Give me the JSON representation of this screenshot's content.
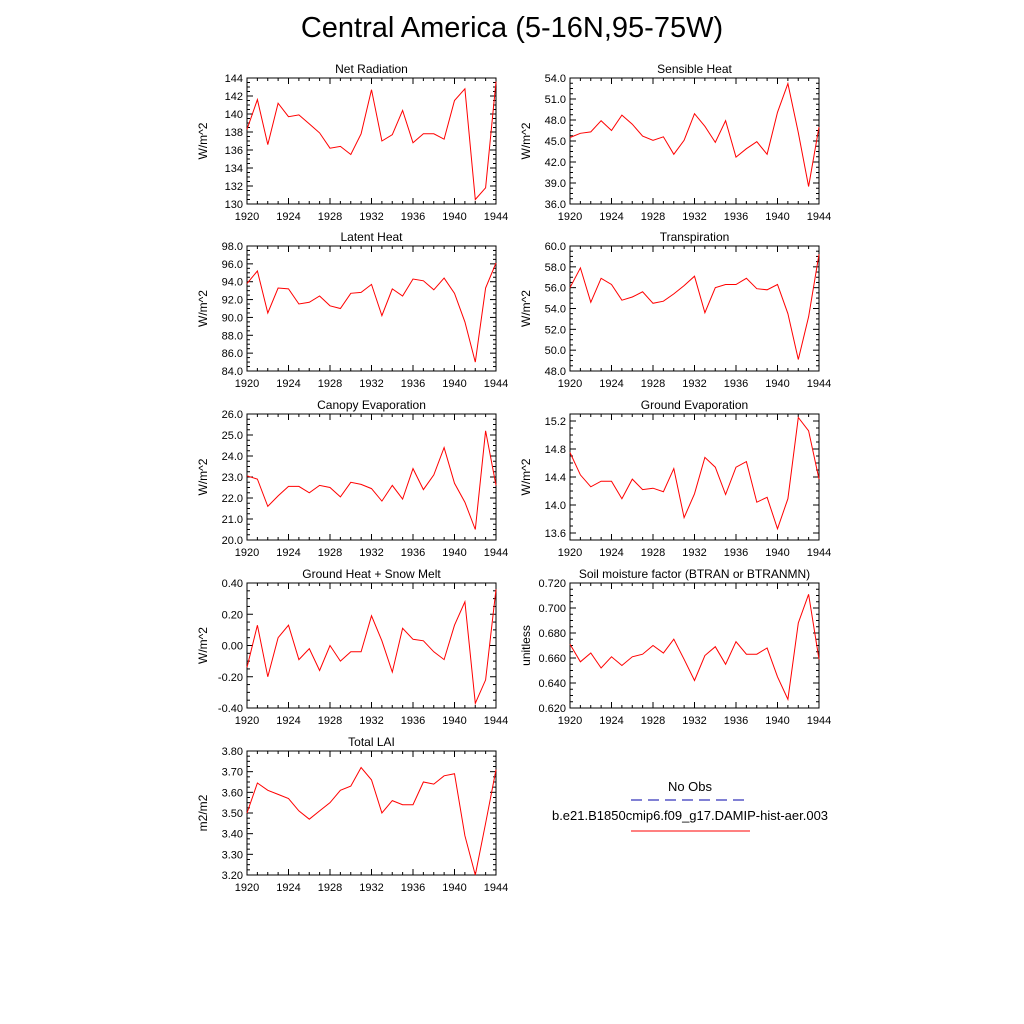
{
  "title": "Central America (5-16N,95-75W)",
  "colors": {
    "model_line": "#ff0000",
    "obs_line": "#0000aa",
    "axis": "#000000"
  },
  "legend": {
    "obs_label": "No Obs",
    "model_label": "b.e21.B1850cmip6.f09_g17.DAMIP-hist-aer.003"
  },
  "chart_data": [
    {
      "type": "line",
      "title": "Net Radiation",
      "xlabel": "",
      "ylabel": "W/m^2",
      "xlim": [
        1920,
        1944
      ],
      "ylim": [
        130,
        144
      ],
      "xticks": [
        1920,
        1924,
        1928,
        1932,
        1936,
        1940,
        1944
      ],
      "yticks": [
        130,
        132,
        134,
        136,
        138,
        140,
        142,
        144
      ],
      "ytick_labels": [
        "130",
        "132",
        "134",
        "136",
        "138",
        "140",
        "142",
        "144"
      ],
      "series": [
        {
          "values": [
            138.3,
            141.6,
            136.6,
            141.2,
            139.7,
            139.9,
            138.9,
            137.9,
            136.2,
            136.4,
            135.5,
            137.8,
            142.7,
            137.0,
            137.7,
            140.4,
            136.8,
            137.8,
            137.8,
            137.2,
            141.5,
            142.8,
            130.5,
            131.8,
            143.6
          ]
        }
      ]
    },
    {
      "type": "line",
      "title": "Sensible Heat",
      "xlabel": "",
      "ylabel": "W/m^2",
      "xlim": [
        1920,
        1944
      ],
      "ylim": [
        36,
        54
      ],
      "xticks": [
        1920,
        1924,
        1928,
        1932,
        1936,
        1940,
        1944
      ],
      "yticks": [
        36,
        39,
        42,
        45,
        48,
        51,
        54
      ],
      "ytick_labels": [
        "36.0",
        "39.0",
        "42.0",
        "45.0",
        "48.0",
        "51.0",
        "54.0"
      ],
      "series": [
        {
          "values": [
            45.5,
            46.1,
            46.3,
            47.9,
            46.5,
            48.7,
            47.4,
            45.7,
            45.1,
            45.6,
            43.1,
            45.1,
            48.9,
            47.1,
            44.8,
            47.9,
            42.7,
            43.9,
            44.9,
            43.1,
            49.1,
            53.2,
            46.2,
            38.5,
            47.0
          ]
        }
      ]
    },
    {
      "type": "line",
      "title": "Latent Heat",
      "xlabel": "",
      "ylabel": "W/m^2",
      "xlim": [
        1920,
        1944
      ],
      "ylim": [
        84,
        98
      ],
      "xticks": [
        1920,
        1924,
        1928,
        1932,
        1936,
        1940,
        1944
      ],
      "yticks": [
        84,
        86,
        88,
        90,
        92,
        94,
        96,
        98
      ],
      "ytick_labels": [
        "84.0",
        "86.0",
        "88.0",
        "90.0",
        "92.0",
        "94.0",
        "96.0",
        "98.0"
      ],
      "series": [
        {
          "values": [
            93.8,
            95.2,
            90.5,
            93.3,
            93.2,
            91.5,
            91.7,
            92.4,
            91.3,
            91.0,
            92.7,
            92.8,
            93.7,
            90.2,
            93.2,
            92.4,
            94.3,
            94.1,
            93.1,
            94.4,
            92.7,
            89.5,
            85.0,
            93.3,
            96.1
          ]
        }
      ]
    },
    {
      "type": "line",
      "title": "Transpiration",
      "xlabel": "",
      "ylabel": "W/m^2",
      "xlim": [
        1920,
        1944
      ],
      "ylim": [
        48,
        60
      ],
      "xticks": [
        1920,
        1924,
        1928,
        1932,
        1936,
        1940,
        1944
      ],
      "yticks": [
        48,
        50,
        52,
        54,
        56,
        58,
        60
      ],
      "ytick_labels": [
        "48.0",
        "50.0",
        "52.0",
        "54.0",
        "56.0",
        "58.0",
        "60.0"
      ],
      "series": [
        {
          "values": [
            56.0,
            57.9,
            54.6,
            56.9,
            56.3,
            54.8,
            55.1,
            55.6,
            54.5,
            54.7,
            55.4,
            56.2,
            57.1,
            53.6,
            56.0,
            56.3,
            56.3,
            56.9,
            55.9,
            55.8,
            56.3,
            53.5,
            49.1,
            53.2,
            59.2
          ]
        }
      ]
    },
    {
      "type": "line",
      "title": "Canopy Evaporation",
      "xlabel": "",
      "ylabel": "W/m^2",
      "xlim": [
        1920,
        1944
      ],
      "ylim": [
        20,
        26
      ],
      "xticks": [
        1920,
        1924,
        1928,
        1932,
        1936,
        1940,
        1944
      ],
      "yticks": [
        20,
        21,
        22,
        23,
        24,
        25,
        26
      ],
      "ytick_labels": [
        "20.0",
        "21.0",
        "22.0",
        "23.0",
        "24.0",
        "25.0",
        "26.0"
      ],
      "series": [
        {
          "values": [
            23.05,
            22.9,
            21.6,
            22.1,
            22.55,
            22.55,
            22.25,
            22.6,
            22.5,
            22.05,
            22.75,
            22.65,
            22.45,
            21.85,
            22.6,
            21.95,
            23.4,
            22.4,
            23.1,
            24.4,
            22.7,
            21.8,
            20.5,
            25.2,
            22.6
          ]
        }
      ]
    },
    {
      "type": "line",
      "title": "Ground Evaporation",
      "xlabel": "",
      "ylabel": "W/m^2",
      "xlim": [
        1920,
        1944
      ],
      "ylim": [
        13.5,
        15.3
      ],
      "xticks": [
        1920,
        1924,
        1928,
        1932,
        1936,
        1940,
        1944
      ],
      "yticks": [
        13.6,
        14.0,
        14.4,
        14.8,
        15.2
      ],
      "ytick_labels": [
        "13.6",
        "14.0",
        "14.4",
        "14.8",
        "15.2"
      ],
      "series": [
        {
          "values": [
            14.75,
            14.43,
            14.26,
            14.34,
            14.34,
            14.09,
            14.37,
            14.22,
            14.24,
            14.19,
            14.52,
            13.82,
            14.16,
            14.68,
            14.54,
            14.15,
            14.54,
            14.62,
            14.04,
            14.11,
            13.66,
            14.09,
            15.25,
            15.06,
            14.37
          ]
        }
      ]
    },
    {
      "type": "line",
      "title": "Ground Heat + Snow Melt",
      "xlabel": "",
      "ylabel": "W/m^2",
      "xlim": [
        1920,
        1944
      ],
      "ylim": [
        -0.4,
        0.4
      ],
      "xticks": [
        1920,
        1924,
        1928,
        1932,
        1936,
        1940,
        1944
      ],
      "yticks": [
        -0.4,
        -0.2,
        0.0,
        0.2,
        0.4
      ],
      "ytick_labels": [
        "-0.40",
        "-0.20",
        "0.00",
        "0.20",
        "0.40"
      ],
      "series": [
        {
          "values": [
            -0.14,
            0.13,
            -0.2,
            0.05,
            0.13,
            -0.09,
            -0.02,
            -0.16,
            0.0,
            -0.1,
            -0.04,
            -0.04,
            0.19,
            0.03,
            -0.17,
            0.11,
            0.04,
            0.03,
            -0.04,
            -0.09,
            0.13,
            0.28,
            -0.37,
            -0.22,
            0.36
          ]
        }
      ]
    },
    {
      "type": "line",
      "title": "Soil moisture factor (BTRAN or BTRANMN)",
      "xlabel": "",
      "ylabel": "unitless",
      "xlim": [
        1920,
        1944
      ],
      "ylim": [
        0.62,
        0.72
      ],
      "xticks": [
        1920,
        1924,
        1928,
        1932,
        1936,
        1940,
        1944
      ],
      "yticks": [
        0.62,
        0.64,
        0.66,
        0.68,
        0.7,
        0.72
      ],
      "ytick_labels": [
        "0.620",
        "0.640",
        "0.660",
        "0.680",
        "0.700",
        "0.720"
      ],
      "series": [
        {
          "values": [
            0.671,
            0.657,
            0.664,
            0.652,
            0.661,
            0.654,
            0.661,
            0.663,
            0.67,
            0.664,
            0.675,
            0.659,
            0.642,
            0.662,
            0.669,
            0.655,
            0.673,
            0.663,
            0.663,
            0.668,
            0.645,
            0.627,
            0.688,
            0.711,
            0.659
          ]
        }
      ]
    },
    {
      "type": "line",
      "title": "Total LAI",
      "xlabel": "",
      "ylabel": "m2/m2",
      "xlim": [
        1920,
        1944
      ],
      "ylim": [
        3.2,
        3.8
      ],
      "xticks": [
        1920,
        1924,
        1928,
        1932,
        1936,
        1940,
        1944
      ],
      "yticks": [
        3.2,
        3.3,
        3.4,
        3.5,
        3.6,
        3.7,
        3.8
      ],
      "ytick_labels": [
        "3.20",
        "3.30",
        "3.40",
        "3.50",
        "3.60",
        "3.70",
        "3.80"
      ],
      "series": [
        {
          "values": [
            3.5,
            3.645,
            3.61,
            3.59,
            3.57,
            3.51,
            3.47,
            3.51,
            3.55,
            3.61,
            3.63,
            3.72,
            3.66,
            3.5,
            3.56,
            3.54,
            3.54,
            3.65,
            3.64,
            3.68,
            3.69,
            3.39,
            3.2,
            3.45,
            3.71
          ]
        }
      ]
    }
  ]
}
